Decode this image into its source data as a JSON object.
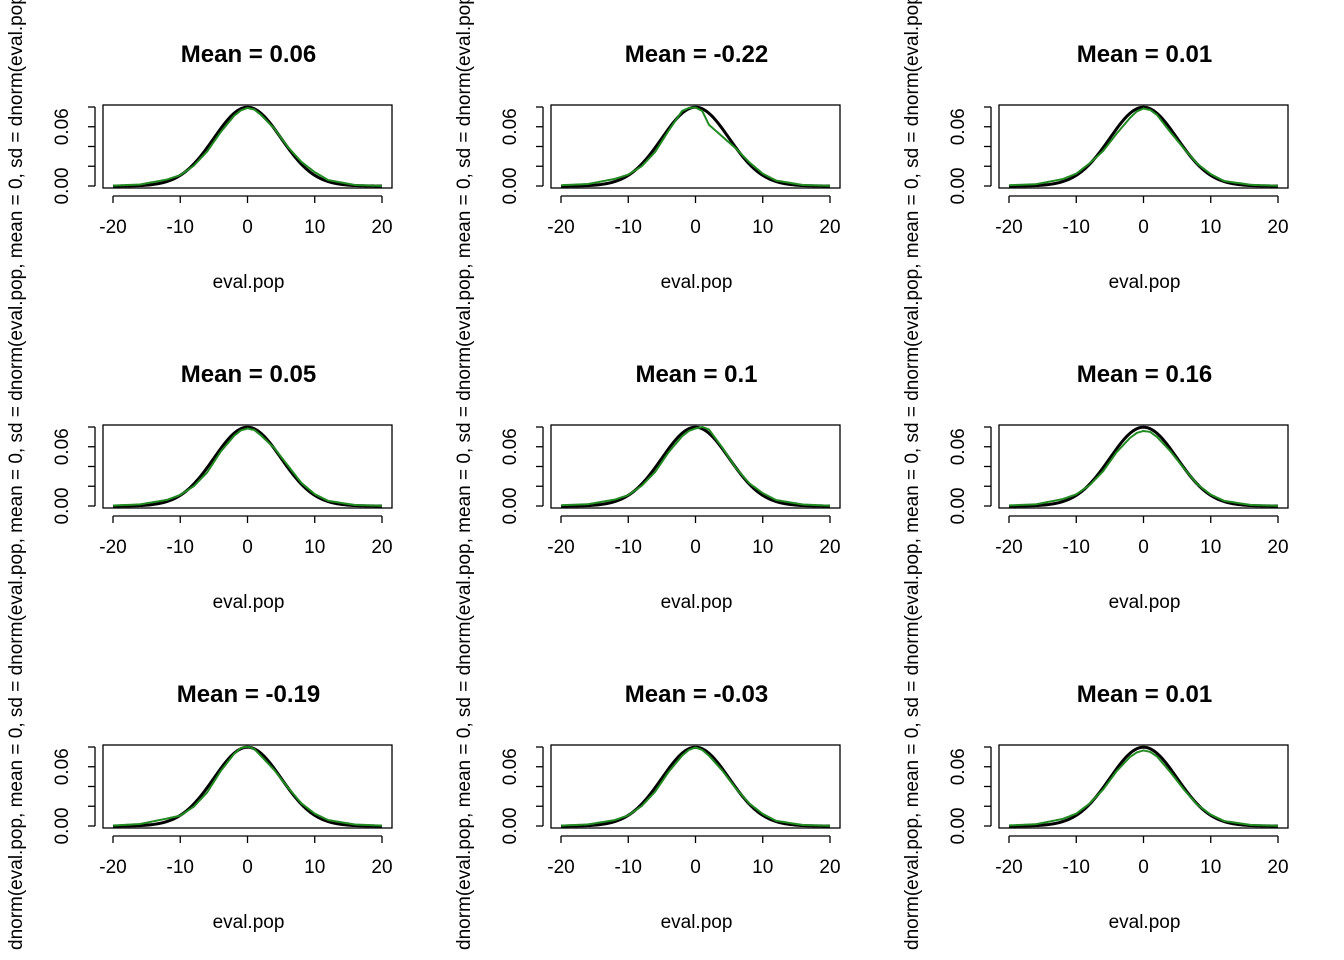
{
  "chart_data": {
    "type": "line",
    "layout": "3x3 grid",
    "xlabel": "eval.pop",
    "ylabel": "dnorm(eval.pop, mean = 0, sd =",
    "xlim": [
      -20,
      20
    ],
    "ylim": [
      0,
      0.08
    ],
    "xticks": [
      -20,
      -10,
      0,
      10,
      20
    ],
    "yticks": [
      0.0,
      0.06
    ],
    "ytick_labels": [
      "0.00",
      "0.06"
    ],
    "colors": {
      "normal": "#000000",
      "simulated": "#228B22"
    },
    "panels": [
      {
        "title": "Mean =  0.06",
        "mean": 0.06
      },
      {
        "title": "Mean =  -0.22",
        "mean": -0.22
      },
      {
        "title": "Mean =  0.01",
        "mean": 0.01
      },
      {
        "title": "Mean =  0.05",
        "mean": 0.05
      },
      {
        "title": "Mean =  0.1",
        "mean": 0.1
      },
      {
        "title": "Mean =  0.16",
        "mean": 0.16
      },
      {
        "title": "Mean =  -0.19",
        "mean": -0.19
      },
      {
        "title": "Mean =  -0.03",
        "mean": -0.03
      },
      {
        "title": "Mean =  0.01",
        "mean": 0.01
      }
    ],
    "normal_curve": {
      "mean": 0,
      "sd": 5
    },
    "simulated_density": {
      "x": [
        -20,
        -16,
        -12,
        -10,
        -8,
        -6,
        -4,
        -2,
        -1,
        0,
        1,
        2,
        4,
        6,
        8,
        10,
        12,
        16,
        20
      ],
      "panels": [
        [
          0.0004,
          0.0015,
          0.0065,
          0.011,
          0.0205,
          0.035,
          0.0545,
          0.071,
          0.0765,
          0.079,
          0.0775,
          0.072,
          0.058,
          0.0395,
          0.0245,
          0.014,
          0.006,
          0.001,
          0.0001
        ],
        [
          0.0008,
          0.002,
          0.0072,
          0.0115,
          0.02,
          0.0345,
          0.056,
          0.076,
          0.079,
          0.0795,
          0.076,
          0.062,
          0.05,
          0.038,
          0.024,
          0.0125,
          0.0055,
          0.001,
          0.0002
        ],
        [
          0.0008,
          0.0018,
          0.007,
          0.0125,
          0.023,
          0.0355,
          0.053,
          0.069,
          0.0755,
          0.0785,
          0.077,
          0.072,
          0.0545,
          0.038,
          0.0225,
          0.012,
          0.005,
          0.0012,
          0.0002
        ],
        [
          0.0005,
          0.0016,
          0.0062,
          0.0112,
          0.02,
          0.034,
          0.055,
          0.071,
          0.0765,
          0.0785,
          0.077,
          0.0715,
          0.0585,
          0.041,
          0.0235,
          0.012,
          0.0052,
          0.001,
          0.0002
        ],
        [
          0.0008,
          0.0018,
          0.0065,
          0.011,
          0.0205,
          0.0345,
          0.0545,
          0.0705,
          0.076,
          0.0785,
          0.08,
          0.0775,
          0.059,
          0.0385,
          0.023,
          0.013,
          0.006,
          0.0015,
          0.0003
        ],
        [
          0.0006,
          0.0017,
          0.007,
          0.0118,
          0.0212,
          0.0352,
          0.0545,
          0.069,
          0.074,
          0.076,
          0.075,
          0.07,
          0.0555,
          0.0382,
          0.022,
          0.0115,
          0.0052,
          0.001,
          0.0002
        ],
        [
          0.0005,
          0.002,
          0.0075,
          0.0105,
          0.0195,
          0.034,
          0.0555,
          0.073,
          0.079,
          0.0805,
          0.078,
          0.071,
          0.0565,
          0.039,
          0.023,
          0.0125,
          0.006,
          0.0015,
          0.0004
        ],
        [
          0.0004,
          0.0016,
          0.006,
          0.0108,
          0.0202,
          0.0348,
          0.0548,
          0.0712,
          0.077,
          0.0795,
          0.077,
          0.0712,
          0.056,
          0.038,
          0.0228,
          0.0122,
          0.0052,
          0.001,
          0.0002
        ],
        [
          0.0006,
          0.0018,
          0.0072,
          0.0125,
          0.0228,
          0.037,
          0.0555,
          0.07,
          0.0745,
          0.0765,
          0.075,
          0.0705,
          0.0545,
          0.037,
          0.0215,
          0.0115,
          0.005,
          0.001,
          0.0002
        ]
      ]
    }
  }
}
